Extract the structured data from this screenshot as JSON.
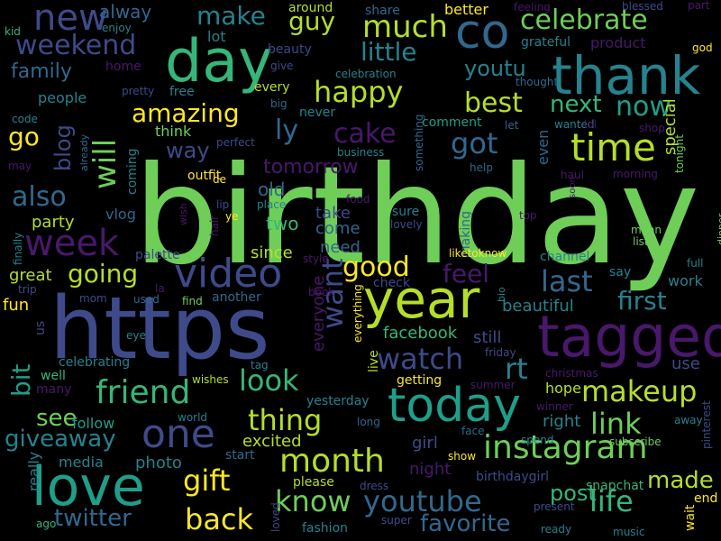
{
  "palette": {
    "background": "#000000",
    "purple": "#48186a",
    "indigo": "#3e4a89",
    "blue": "#31688e",
    "teal": "#26828e",
    "green_teal": "#1f9e89",
    "green": "#35b779",
    "light_green": "#6ece58",
    "lime": "#b5de2b",
    "yellow": "#fde725"
  },
  "words": [
    {
      "text": "birthday",
      "color": "#6ece58"
    },
    {
      "text": "https",
      "color": "#3e4a89"
    },
    {
      "text": "tagged",
      "color": "#48186a"
    },
    {
      "text": "thank",
      "color": "#26828e"
    },
    {
      "text": "day",
      "color": "#35b779"
    },
    {
      "text": "year",
      "color": "#b5de2b"
    },
    {
      "text": "love",
      "color": "#1f9e89"
    },
    {
      "text": "today",
      "color": "#1f9e89"
    },
    {
      "text": "co",
      "color": "#31688e"
    },
    {
      "text": "video",
      "color": "#3e4a89"
    },
    {
      "text": "one",
      "color": "#3e4a89"
    },
    {
      "text": "time",
      "color": "#b5de2b"
    },
    {
      "text": "new",
      "color": "#3e4a89"
    },
    {
      "text": "month",
      "color": "#b5de2b"
    },
    {
      "text": "week",
      "color": "#48186a"
    },
    {
      "text": "friend",
      "color": "#35b779"
    },
    {
      "text": "instagram",
      "color": "#6ece58"
    },
    {
      "text": "youtube",
      "color": "#31688e"
    },
    {
      "text": "happy",
      "color": "#b5de2b"
    },
    {
      "text": "much",
      "color": "#b5de2b"
    },
    {
      "text": "celebrate",
      "color": "#6ece58"
    },
    {
      "text": "make",
      "color": "#26828e"
    },
    {
      "text": "weekend",
      "color": "#3e4a89"
    },
    {
      "text": "best",
      "color": "#b5de2b"
    },
    {
      "text": "got",
      "color": "#31688e"
    },
    {
      "text": "now",
      "color": "#1f9e89"
    },
    {
      "text": "amazing",
      "color": "#fde725"
    },
    {
      "text": "will",
      "color": "#6ece58"
    },
    {
      "text": "cake",
      "color": "#48186a"
    },
    {
      "text": "ly",
      "color": "#31688e"
    },
    {
      "text": "go",
      "color": "#fde725"
    },
    {
      "text": "also",
      "color": "#31688e"
    },
    {
      "text": "want",
      "color": "#3e4a89"
    },
    {
      "text": "watch",
      "color": "#3e4a89"
    },
    {
      "text": "rt",
      "color": "#26828e"
    },
    {
      "text": "look",
      "color": "#35b779"
    },
    {
      "text": "thing",
      "color": "#b5de2b"
    },
    {
      "text": "link",
      "color": "#6ece58"
    },
    {
      "text": "life",
      "color": "#35b779"
    },
    {
      "text": "makeup",
      "color": "#b5de2b"
    },
    {
      "text": "gift",
      "color": "#fde725"
    },
    {
      "text": "back",
      "color": "#fde725"
    },
    {
      "text": "know",
      "color": "#6ece58"
    },
    {
      "text": "good",
      "color": "#fde725"
    },
    {
      "text": "last",
      "color": "#31688e"
    },
    {
      "text": "first",
      "color": "#26828e"
    },
    {
      "text": "feel",
      "color": "#48186a"
    },
    {
      "text": "going",
      "color": "#b5de2b"
    },
    {
      "text": "see",
      "color": "#6ece58"
    },
    {
      "text": "bit",
      "color": "#1f9e89"
    },
    {
      "text": "twitter",
      "color": "#31688e"
    },
    {
      "text": "giveaway",
      "color": "#26828e"
    },
    {
      "text": "made",
      "color": "#b5de2b"
    },
    {
      "text": "post",
      "color": "#35b779"
    },
    {
      "text": "favorite",
      "color": "#31688e"
    },
    {
      "text": "guy",
      "color": "#b5de2b"
    },
    {
      "text": "family",
      "color": "#31688e"
    },
    {
      "text": "little",
      "color": "#26828e"
    },
    {
      "text": "youtu",
      "color": "#26828e"
    },
    {
      "text": "next",
      "color": "#35b779"
    },
    {
      "text": "blog",
      "color": "#3e4a89"
    },
    {
      "text": "way",
      "color": "#3e4a89"
    },
    {
      "text": "tomorrow",
      "color": "#48186a"
    },
    {
      "text": "old",
      "color": "#31688e"
    },
    {
      "text": "two",
      "color": "#35b779"
    },
    {
      "text": "take",
      "color": "#3e4a89"
    },
    {
      "text": "come",
      "color": "#31688e"
    },
    {
      "text": "need",
      "color": "#31688e"
    },
    {
      "text": "since",
      "color": "#b5de2b"
    },
    {
      "text": "everyone",
      "color": "#48186a"
    },
    {
      "text": "beautiful",
      "color": "#26828e"
    },
    {
      "text": "facebook",
      "color": "#35b779"
    },
    {
      "text": "still",
      "color": "#3e4a89"
    },
    {
      "text": "use",
      "color": "#3e4a89"
    },
    {
      "text": "hope",
      "color": "#b5de2b"
    },
    {
      "text": "right",
      "color": "#26828e"
    },
    {
      "text": "girl",
      "color": "#3e4a89"
    },
    {
      "text": "night",
      "color": "#48186a"
    },
    {
      "text": "excited",
      "color": "#b5de2b"
    },
    {
      "text": "photo",
      "color": "#26828e"
    },
    {
      "text": "media",
      "color": "#26828e"
    },
    {
      "text": "follow",
      "color": "#1f9e89"
    },
    {
      "text": "really",
      "color": "#26828e"
    },
    {
      "text": "fun",
      "color": "#fde725"
    },
    {
      "text": "great",
      "color": "#b5de2b"
    },
    {
      "text": "party",
      "color": "#b5de2b"
    },
    {
      "text": "vlog",
      "color": "#31688e"
    },
    {
      "text": "people",
      "color": "#26828e"
    },
    {
      "text": "alway",
      "color": "#31688e"
    },
    {
      "text": "around",
      "color": "#b5de2b"
    },
    {
      "text": "share",
      "color": "#31688e"
    },
    {
      "text": "better",
      "color": "#fde725"
    },
    {
      "text": "feeling",
      "color": "#48186a"
    },
    {
      "text": "blessed",
      "color": "#3e4a89"
    },
    {
      "text": "part",
      "color": "#48186a"
    },
    {
      "text": "kid",
      "color": "#35b779"
    },
    {
      "text": "enjoy",
      "color": "#26828e"
    },
    {
      "text": "lot",
      "color": "#26828e"
    },
    {
      "text": "beauty",
      "color": "#3e4a89"
    },
    {
      "text": "grateful",
      "color": "#26828e"
    },
    {
      "text": "product",
      "color": "#48186a"
    },
    {
      "text": "god",
      "color": "#fde725"
    },
    {
      "text": "home",
      "color": "#48186a"
    },
    {
      "text": "give",
      "color": "#3e4a89"
    },
    {
      "text": "celebration",
      "color": "#26828e"
    },
    {
      "text": "thought",
      "color": "#31688e"
    },
    {
      "text": "every",
      "color": "#b5de2b"
    },
    {
      "text": "pretty",
      "color": "#3e4a89"
    },
    {
      "text": "free",
      "color": "#26828e"
    },
    {
      "text": "big",
      "color": "#31688e"
    },
    {
      "text": "never",
      "color": "#26828e"
    },
    {
      "text": "comment",
      "color": "#1f9e89"
    },
    {
      "text": "wanted",
      "color": "#26828e"
    },
    {
      "text": "lol",
      "color": "#48186a"
    },
    {
      "text": "let",
      "color": "#31688e"
    },
    {
      "text": "shop",
      "color": "#48186a"
    },
    {
      "text": "special",
      "color": "#b5de2b"
    },
    {
      "text": "code",
      "color": "#26828e"
    },
    {
      "text": "think",
      "color": "#6ece58"
    },
    {
      "text": "perfect",
      "color": "#3e4a89"
    },
    {
      "text": "business",
      "color": "#26828e"
    },
    {
      "text": "even",
      "color": "#31688e"
    },
    {
      "text": "tonight",
      "color": "#6ece58"
    },
    {
      "text": "may",
      "color": "#48186a"
    },
    {
      "text": "coming",
      "color": "#26828e"
    },
    {
      "text": "already",
      "color": "#31688e"
    },
    {
      "text": "outfit",
      "color": "#fde725"
    },
    {
      "text": "de",
      "color": "#fde725"
    },
    {
      "text": "help",
      "color": "#31688e"
    },
    {
      "text": "haul",
      "color": "#48186a"
    },
    {
      "text": "morning",
      "color": "#48186a"
    },
    {
      "text": "something",
      "color": "#31688e"
    },
    {
      "text": "finally",
      "color": "#26828e"
    },
    {
      "text": "wish",
      "color": "#48186a"
    },
    {
      "text": "lip",
      "color": "#3e4a89"
    },
    {
      "text": "ye",
      "color": "#fde725"
    },
    {
      "text": "place",
      "color": "#26828e"
    },
    {
      "text": "food",
      "color": "#48186a"
    },
    {
      "text": "sure",
      "color": "#26828e"
    },
    {
      "text": "lovely",
      "color": "#3e4a89"
    },
    {
      "text": "top",
      "color": "#48186a"
    },
    {
      "text": "soon",
      "color": "#48186a"
    },
    {
      "text": "mean",
      "color": "#6ece58"
    },
    {
      "text": "list",
      "color": "#6ece58"
    },
    {
      "text": "dinner",
      "color": "#6ece58"
    },
    {
      "text": "hair",
      "color": "#48186a"
    },
    {
      "text": "making",
      "color": "#31688e"
    },
    {
      "text": "liketoknow",
      "color": "#fde725"
    },
    {
      "text": "channel",
      "color": "#26828e"
    },
    {
      "text": "full",
      "color": "#26828e"
    },
    {
      "text": "palette",
      "color": "#3e4a89"
    },
    {
      "text": "style",
      "color": "#48186a"
    },
    {
      "text": "check",
      "color": "#3e4a89"
    },
    {
      "text": "say",
      "color": "#26828e"
    },
    {
      "text": "trip",
      "color": "#3e4a89"
    },
    {
      "text": "work",
      "color": "#26828e"
    },
    {
      "text": "la",
      "color": "#48186a"
    },
    {
      "text": "book",
      "color": "#48186a"
    },
    {
      "text": "mom",
      "color": "#3e4a89"
    },
    {
      "text": "used",
      "color": "#31688e"
    },
    {
      "text": "find",
      "color": "#6ece58"
    },
    {
      "text": "another",
      "color": "#31688e"
    },
    {
      "text": "bio",
      "color": "#26828e"
    },
    {
      "text": "us",
      "color": "#3e4a89"
    },
    {
      "text": "eye",
      "color": "#26828e"
    },
    {
      "text": "everything",
      "color": "#fde725"
    },
    {
      "text": "live",
      "color": "#b5de2b"
    },
    {
      "text": "friday",
      "color": "#3e4a89"
    },
    {
      "text": "celebrating",
      "color": "#26828e"
    },
    {
      "text": "tag",
      "color": "#26828e"
    },
    {
      "text": "christmas",
      "color": "#48186a"
    },
    {
      "text": "many",
      "color": "#48186a"
    },
    {
      "text": "well",
      "color": "#35b779"
    },
    {
      "text": "wishes",
      "color": "#b5de2b"
    },
    {
      "text": "yesterday",
      "color": "#26828e"
    },
    {
      "text": "getting",
      "color": "#fde725"
    },
    {
      "text": "summer",
      "color": "#48186a"
    },
    {
      "text": "winner",
      "color": "#48186a"
    },
    {
      "text": "away",
      "color": "#26828e"
    },
    {
      "text": "world",
      "color": "#26828e"
    },
    {
      "text": "long",
      "color": "#31688e"
    },
    {
      "text": "face",
      "color": "#31688e"
    },
    {
      "text": "spend",
      "color": "#26828e"
    },
    {
      "text": "subscribe",
      "color": "#6ece58"
    },
    {
      "text": "pinterest",
      "color": "#3e4a89"
    },
    {
      "text": "start",
      "color": "#31688e"
    },
    {
      "text": "show",
      "color": "#fde725"
    },
    {
      "text": "birthdaygirl",
      "color": "#3e4a89"
    },
    {
      "text": "please",
      "color": "#b5de2b"
    },
    {
      "text": "dress",
      "color": "#3e4a89"
    },
    {
      "text": "snapchat",
      "color": "#35b779"
    },
    {
      "text": "end",
      "color": "#fde725"
    },
    {
      "text": "wait",
      "color": "#fde725"
    },
    {
      "text": "ago",
      "color": "#35b779"
    },
    {
      "text": "loved",
      "color": "#3e4a89"
    },
    {
      "text": "fashion",
      "color": "#26828e"
    },
    {
      "text": "super",
      "color": "#3e4a89"
    },
    {
      "text": "present",
      "color": "#3e4a89"
    },
    {
      "text": "ready",
      "color": "#26828e"
    },
    {
      "text": "music",
      "color": "#26828e"
    }
  ]
}
